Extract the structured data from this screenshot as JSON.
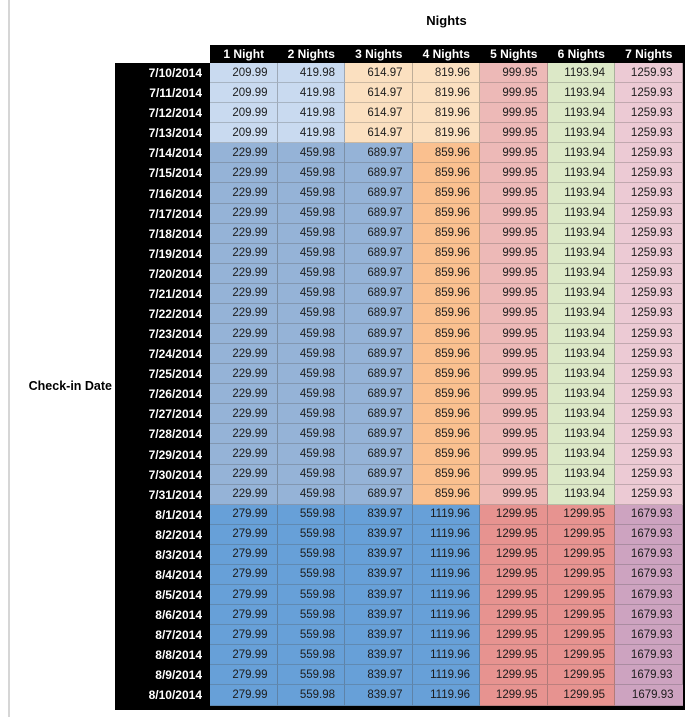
{
  "chart_data": {
    "type": "table",
    "title": "Nights",
    "row_axis_label": "Check-in Date",
    "columns": [
      "1 Night",
      "2 Nights",
      "3 Nights",
      "4 Nights",
      "5 Nights",
      "6 Nights",
      "7 Nights"
    ],
    "colors": {
      "lightBlue": "#c9daf0",
      "lightOrange": "#fbe0c0",
      "midBlue": "#95b3d7",
      "midOrange": "#fac08f",
      "lightRed": "#edb9b7",
      "lightGreen": "#dce8c7",
      "lightPink": "#eccad4",
      "darkBlue": "#67a0d8",
      "midRed": "#e79390",
      "mauve": "#cda3c0",
      "headerBg": "#000000",
      "headerText": "#ffffff"
    },
    "bands": {
      "A": [
        "lightBlue",
        "lightBlue",
        "lightOrange",
        "lightOrange",
        "lightRed",
        "lightGreen",
        "lightPink"
      ],
      "B": [
        "midBlue",
        "midBlue",
        "midBlue",
        "midOrange",
        "lightRed",
        "lightGreen",
        "lightPink"
      ],
      "C": [
        "darkBlue",
        "darkBlue",
        "darkBlue",
        "darkBlue",
        "midRed",
        "midRed",
        "mauve"
      ]
    },
    "rows": [
      {
        "date": "7/10/2014",
        "band": "A",
        "values": [
          "209.99",
          "419.98",
          "614.97",
          "819.96",
          "999.95",
          "1193.94",
          "1259.93"
        ]
      },
      {
        "date": "7/11/2014",
        "band": "A",
        "values": [
          "209.99",
          "419.98",
          "614.97",
          "819.96",
          "999.95",
          "1193.94",
          "1259.93"
        ]
      },
      {
        "date": "7/12/2014",
        "band": "A",
        "values": [
          "209.99",
          "419.98",
          "614.97",
          "819.96",
          "999.95",
          "1193.94",
          "1259.93"
        ]
      },
      {
        "date": "7/13/2014",
        "band": "A",
        "values": [
          "209.99",
          "419.98",
          "614.97",
          "819.96",
          "999.95",
          "1193.94",
          "1259.93"
        ]
      },
      {
        "date": "7/14/2014",
        "band": "B",
        "values": [
          "229.99",
          "459.98",
          "689.97",
          "859.96",
          "999.95",
          "1193.94",
          "1259.93"
        ]
      },
      {
        "date": "7/15/2014",
        "band": "B",
        "values": [
          "229.99",
          "459.98",
          "689.97",
          "859.96",
          "999.95",
          "1193.94",
          "1259.93"
        ]
      },
      {
        "date": "7/16/2014",
        "band": "B",
        "values": [
          "229.99",
          "459.98",
          "689.97",
          "859.96",
          "999.95",
          "1193.94",
          "1259.93"
        ]
      },
      {
        "date": "7/17/2014",
        "band": "B",
        "values": [
          "229.99",
          "459.98",
          "689.97",
          "859.96",
          "999.95",
          "1193.94",
          "1259.93"
        ]
      },
      {
        "date": "7/18/2014",
        "band": "B",
        "values": [
          "229.99",
          "459.98",
          "689.97",
          "859.96",
          "999.95",
          "1193.94",
          "1259.93"
        ]
      },
      {
        "date": "7/19/2014",
        "band": "B",
        "values": [
          "229.99",
          "459.98",
          "689.97",
          "859.96",
          "999.95",
          "1193.94",
          "1259.93"
        ]
      },
      {
        "date": "7/20/2014",
        "band": "B",
        "values": [
          "229.99",
          "459.98",
          "689.97",
          "859.96",
          "999.95",
          "1193.94",
          "1259.93"
        ]
      },
      {
        "date": "7/21/2014",
        "band": "B",
        "values": [
          "229.99",
          "459.98",
          "689.97",
          "859.96",
          "999.95",
          "1193.94",
          "1259.93"
        ]
      },
      {
        "date": "7/22/2014",
        "band": "B",
        "values": [
          "229.99",
          "459.98",
          "689.97",
          "859.96",
          "999.95",
          "1193.94",
          "1259.93"
        ]
      },
      {
        "date": "7/23/2014",
        "band": "B",
        "values": [
          "229.99",
          "459.98",
          "689.97",
          "859.96",
          "999.95",
          "1193.94",
          "1259.93"
        ]
      },
      {
        "date": "7/24/2014",
        "band": "B",
        "values": [
          "229.99",
          "459.98",
          "689.97",
          "859.96",
          "999.95",
          "1193.94",
          "1259.93"
        ]
      },
      {
        "date": "7/25/2014",
        "band": "B",
        "values": [
          "229.99",
          "459.98",
          "689.97",
          "859.96",
          "999.95",
          "1193.94",
          "1259.93"
        ]
      },
      {
        "date": "7/26/2014",
        "band": "B",
        "values": [
          "229.99",
          "459.98",
          "689.97",
          "859.96",
          "999.95",
          "1193.94",
          "1259.93"
        ]
      },
      {
        "date": "7/27/2014",
        "band": "B",
        "values": [
          "229.99",
          "459.98",
          "689.97",
          "859.96",
          "999.95",
          "1193.94",
          "1259.93"
        ]
      },
      {
        "date": "7/28/2014",
        "band": "B",
        "values": [
          "229.99",
          "459.98",
          "689.97",
          "859.96",
          "999.95",
          "1193.94",
          "1259.93"
        ]
      },
      {
        "date": "7/29/2014",
        "band": "B",
        "values": [
          "229.99",
          "459.98",
          "689.97",
          "859.96",
          "999.95",
          "1193.94",
          "1259.93"
        ]
      },
      {
        "date": "7/30/2014",
        "band": "B",
        "values": [
          "229.99",
          "459.98",
          "689.97",
          "859.96",
          "999.95",
          "1193.94",
          "1259.93"
        ]
      },
      {
        "date": "7/31/2014",
        "band": "B",
        "values": [
          "229.99",
          "459.98",
          "689.97",
          "859.96",
          "999.95",
          "1193.94",
          "1259.93"
        ]
      },
      {
        "date": "8/1/2014",
        "band": "C",
        "values": [
          "279.99",
          "559.98",
          "839.97",
          "1119.96",
          "1299.95",
          "1299.95",
          "1679.93"
        ]
      },
      {
        "date": "8/2/2014",
        "band": "C",
        "values": [
          "279.99",
          "559.98",
          "839.97",
          "1119.96",
          "1299.95",
          "1299.95",
          "1679.93"
        ]
      },
      {
        "date": "8/3/2014",
        "band": "C",
        "values": [
          "279.99",
          "559.98",
          "839.97",
          "1119.96",
          "1299.95",
          "1299.95",
          "1679.93"
        ]
      },
      {
        "date": "8/4/2014",
        "band": "C",
        "values": [
          "279.99",
          "559.98",
          "839.97",
          "1119.96",
          "1299.95",
          "1299.95",
          "1679.93"
        ]
      },
      {
        "date": "8/5/2014",
        "band": "C",
        "values": [
          "279.99",
          "559.98",
          "839.97",
          "1119.96",
          "1299.95",
          "1299.95",
          "1679.93"
        ]
      },
      {
        "date": "8/6/2014",
        "band": "C",
        "values": [
          "279.99",
          "559.98",
          "839.97",
          "1119.96",
          "1299.95",
          "1299.95",
          "1679.93"
        ]
      },
      {
        "date": "8/7/2014",
        "band": "C",
        "values": [
          "279.99",
          "559.98",
          "839.97",
          "1119.96",
          "1299.95",
          "1299.95",
          "1679.93"
        ]
      },
      {
        "date": "8/8/2014",
        "band": "C",
        "values": [
          "279.99",
          "559.98",
          "839.97",
          "1119.96",
          "1299.95",
          "1299.95",
          "1679.93"
        ]
      },
      {
        "date": "8/9/2014",
        "band": "C",
        "values": [
          "279.99",
          "559.98",
          "839.97",
          "1119.96",
          "1299.95",
          "1299.95",
          "1679.93"
        ]
      },
      {
        "date": "8/10/2014",
        "band": "C",
        "values": [
          "279.99",
          "559.98",
          "839.97",
          "1119.96",
          "1299.95",
          "1299.95",
          "1679.93"
        ]
      }
    ]
  }
}
